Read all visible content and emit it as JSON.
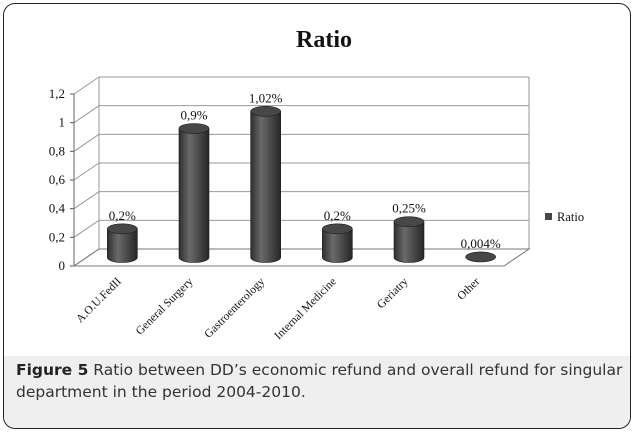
{
  "chart_data": {
    "type": "bar",
    "title": "Ratio",
    "categories": [
      "A.O.U.FedII",
      "General Surgery",
      "Gastroenterology",
      "Internal Medicine",
      "Geriatry",
      "Other"
    ],
    "series": [
      {
        "name": "Ratio",
        "values": [
          0.2,
          0.9,
          1.02,
          0.2,
          0.25,
          0.004
        ],
        "color": "#474747"
      }
    ],
    "data_labels": [
      "0,2%",
      "0,9%",
      "1,02%",
      "0,2%",
      "0,25%",
      "0,004%"
    ],
    "y_ticks": [
      "0",
      "0,2",
      "0,4",
      "0,6",
      "0,8",
      "1",
      "1,2"
    ],
    "ylim": [
      0,
      1.2
    ],
    "grid": true,
    "legend_position": "right",
    "style": "3d-cylinder"
  },
  "caption": {
    "label": "Figure 5",
    "text": " Ratio between DD’s economic refund and overall refund for singular department in the period 2004-2010."
  }
}
